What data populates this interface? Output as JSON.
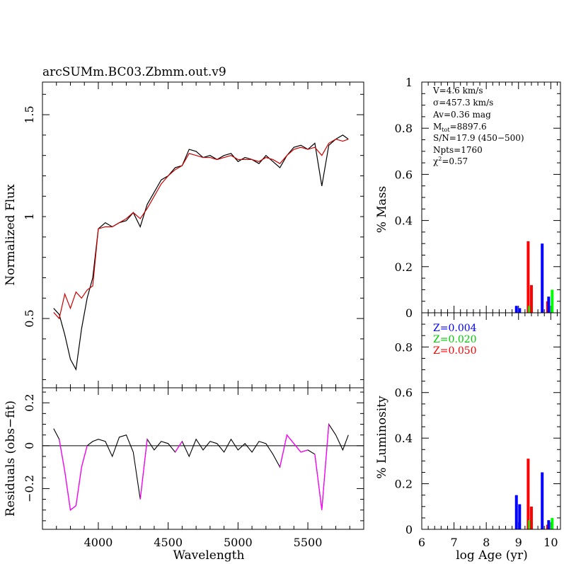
{
  "title": "arcSUMm.BC03.Zbmm.out.v9",
  "spectrum_panel": {
    "ylabel": "Normalized Flux",
    "yticks": [
      "0.5",
      "1",
      "1.5"
    ],
    "ylim": [
      0.16,
      1.66
    ],
    "xlim": [
      3600,
      5900
    ]
  },
  "residual_panel": {
    "ylabel": "Residuals (obs−fit)",
    "yticks": [
      "−0.2",
      "0",
      "0.2"
    ],
    "ylim": [
      -0.39,
      0.27
    ],
    "xlabel": "Wavelength",
    "xticks": [
      "4000",
      "4500",
      "5000",
      "5500"
    ]
  },
  "fit_info": {
    "v": "V=4.6 km/s",
    "sigma": "σ=457.3 km/s",
    "av": "Av=0.36 mag",
    "mtot_prefix": "M",
    "mtot_sub": "tot",
    "mtot_value": "=8897.6",
    "sn": "S/N=17.9 (450−500)",
    "npts": "Npts=1760",
    "chi_prefix": "χ",
    "chi_sup": "2",
    "chi_value": "=0.57"
  },
  "mass_panel": {
    "ylabel": "% Mass",
    "yticks": [
      "0",
      "0.2",
      "0.4",
      "0.6",
      "0.8",
      "1"
    ]
  },
  "lum_panel": {
    "ylabel": "% Luminosity",
    "yticks": [
      "0",
      "0.2",
      "0.4",
      "0.6",
      "0.8"
    ],
    "xlabel": "log Age (yr)",
    "xticks": [
      "6",
      "7",
      "8",
      "9",
      "10"
    ]
  },
  "legend": [
    {
      "label": "Z=0.004",
      "color": "#0000ff"
    },
    {
      "label": "Z=0.020",
      "color": "#00ff00"
    },
    {
      "label": "Z=0.050",
      "color": "#ff0000"
    }
  ],
  "colors": {
    "observed": "#000000",
    "fit": "#cc0000",
    "masked": "#ff00ff",
    "blue": "#0000ff",
    "green": "#00ff00",
    "red": "#ff0000"
  },
  "chart_data": {
    "type": "line",
    "title": "arcSUMm.BC03.Zbmm.out.v9",
    "xlabel": "Wavelength",
    "ylabel": "Normalized Flux",
    "x": [
      3680,
      3720,
      3760,
      3800,
      3840,
      3880,
      3920,
      3960,
      4000,
      4050,
      4100,
      4150,
      4200,
      4250,
      4300,
      4350,
      4400,
      4450,
      4500,
      4550,
      4600,
      4650,
      4700,
      4750,
      4800,
      4850,
      4900,
      4950,
      5000,
      5050,
      5100,
      5150,
      5200,
      5250,
      5300,
      5350,
      5400,
      5450,
      5500,
      5550,
      5600,
      5650,
      5700,
      5750,
      5790
    ],
    "series": [
      {
        "name": "observed",
        "values": [
          0.55,
          0.52,
          0.42,
          0.3,
          0.25,
          0.45,
          0.6,
          0.7,
          0.94,
          0.97,
          0.95,
          0.97,
          0.98,
          1.02,
          0.95,
          1.06,
          1.12,
          1.18,
          1.2,
          1.24,
          1.25,
          1.33,
          1.32,
          1.29,
          1.3,
          1.28,
          1.3,
          1.31,
          1.27,
          1.29,
          1.28,
          1.26,
          1.3,
          1.27,
          1.24,
          1.3,
          1.34,
          1.35,
          1.33,
          1.36,
          1.15,
          1.35,
          1.38,
          1.4,
          1.38
        ]
      },
      {
        "name": "fit",
        "values": [
          0.53,
          0.5,
          0.62,
          0.55,
          0.63,
          0.6,
          0.64,
          0.66,
          0.94,
          0.95,
          0.95,
          0.97,
          0.99,
          1.02,
          0.99,
          1.04,
          1.1,
          1.16,
          1.2,
          1.23,
          1.25,
          1.31,
          1.3,
          1.29,
          1.29,
          1.28,
          1.29,
          1.3,
          1.28,
          1.28,
          1.28,
          1.27,
          1.29,
          1.28,
          1.26,
          1.3,
          1.33,
          1.34,
          1.33,
          1.34,
          1.3,
          1.36,
          1.38,
          1.37,
          1.38
        ]
      },
      {
        "name": "residuals",
        "values": [
          0.08,
          0.03,
          -0.12,
          -0.3,
          -0.28,
          -0.1,
          0.0,
          0.02,
          0.03,
          0.02,
          -0.05,
          0.04,
          0.05,
          -0.03,
          -0.25,
          0.03,
          -0.02,
          0.02,
          0.01,
          -0.03,
          0.02,
          -0.05,
          0.03,
          -0.02,
          0.02,
          0.01,
          -0.03,
          0.03,
          -0.02,
          0.01,
          -0.03,
          0.02,
          0.01,
          -0.04,
          -0.1,
          0.05,
          0.01,
          -0.03,
          -0.02,
          -0.04,
          -0.3,
          0.1,
          0.05,
          -0.02,
          0.05
        ]
      }
    ],
    "residual_masked_ranges": [
      [
        3745,
        3890
      ],
      [
        4315,
        4325
      ],
      [
        4565,
        4575
      ],
      [
        5310,
        5360
      ],
      [
        5410,
        5460
      ],
      [
        5550,
        5620
      ]
    ],
    "population_bars": {
      "xlabel": "log Age (yr)",
      "xlim": [
        6,
        10.3
      ],
      "mass": [
        {
          "log_age": 9.0,
          "z": "Z=0.004",
          "value": 0.03
        },
        {
          "log_age": 9.1,
          "z": "Z=0.004",
          "value": 0.02
        },
        {
          "log_age": 9.3,
          "z": "Z=0.050",
          "value": 0.31
        },
        {
          "log_age": 9.3,
          "z": "Z=0.020",
          "value": 0.03
        },
        {
          "log_age": 9.4,
          "z": "Z=0.050",
          "value": 0.12
        },
        {
          "log_age": 9.8,
          "z": "Z=0.004",
          "value": 0.3
        },
        {
          "log_age": 9.9,
          "z": "Z=0.050",
          "value": 0.05
        },
        {
          "log_age": 10.0,
          "z": "Z=0.004",
          "value": 0.07
        },
        {
          "log_age": 10.0,
          "z": "Z=0.020",
          "value": 0.1
        }
      ],
      "luminosity": [
        {
          "log_age": 9.0,
          "z": "Z=0.004",
          "value": 0.15
        },
        {
          "log_age": 9.1,
          "z": "Z=0.004",
          "value": 0.11
        },
        {
          "log_age": 9.3,
          "z": "Z=0.050",
          "value": 0.31
        },
        {
          "log_age": 9.3,
          "z": "Z=0.020",
          "value": 0.04
        },
        {
          "log_age": 9.4,
          "z": "Z=0.050",
          "value": 0.1
        },
        {
          "log_age": 9.8,
          "z": "Z=0.004",
          "value": 0.25
        },
        {
          "log_age": 9.9,
          "z": "Z=0.050",
          "value": 0.02
        },
        {
          "log_age": 10.0,
          "z": "Z=0.004",
          "value": 0.04
        },
        {
          "log_age": 10.0,
          "z": "Z=0.020",
          "value": 0.05
        }
      ]
    }
  }
}
